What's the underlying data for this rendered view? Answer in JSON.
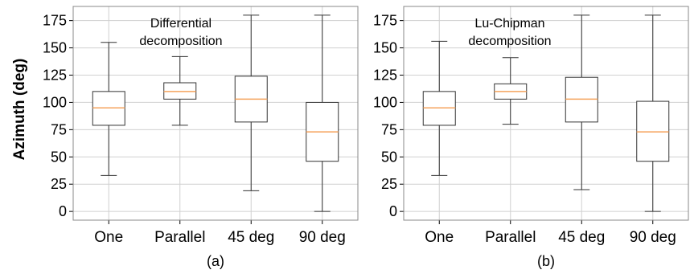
{
  "figure": {
    "ylabel": "Azimuth (deg)",
    "ytick_labels": [
      "0",
      "25",
      "50",
      "75",
      "100",
      "125",
      "150",
      "175"
    ],
    "colors": {
      "box": "#333333",
      "median": "#f5a35c",
      "grid": "#d0d0d0",
      "frame": "#888888"
    }
  },
  "chart_data": [
    {
      "type": "box",
      "caption": "(a)",
      "annotation": [
        "Differential",
        "decomposition"
      ],
      "ylabel": "Azimuth (deg)",
      "ylim": [
        -8,
        188
      ],
      "yticks": [
        0,
        25,
        50,
        75,
        100,
        125,
        150,
        175
      ],
      "grid": true,
      "categories": [
        "One",
        "Parallel",
        "45 deg",
        "90 deg"
      ],
      "boxes": [
        {
          "whislo": 33,
          "q1": 79,
          "med": 95,
          "q3": 110,
          "whishi": 155
        },
        {
          "whislo": 79,
          "q1": 103,
          "med": 110,
          "q3": 118,
          "whishi": 142
        },
        {
          "whislo": 19,
          "q1": 82,
          "med": 103,
          "q3": 124,
          "whishi": 180
        },
        {
          "whislo": 0,
          "q1": 46,
          "med": 73,
          "q3": 100,
          "whishi": 180
        }
      ]
    },
    {
      "type": "box",
      "caption": "(b)",
      "annotation": [
        "Lu-Chipman",
        "decomposition"
      ],
      "ylim": [
        -8,
        188
      ],
      "yticks": [
        0,
        25,
        50,
        75,
        100,
        125,
        150,
        175
      ],
      "grid": true,
      "categories": [
        "One",
        "Parallel",
        "45 deg",
        "90 deg"
      ],
      "boxes": [
        {
          "whislo": 33,
          "q1": 79,
          "med": 95,
          "q3": 110,
          "whishi": 156
        },
        {
          "whislo": 80,
          "q1": 103,
          "med": 110,
          "q3": 117,
          "whishi": 141
        },
        {
          "whislo": 20,
          "q1": 82,
          "med": 103,
          "q3": 123,
          "whishi": 180
        },
        {
          "whislo": 0,
          "q1": 46,
          "med": 73,
          "q3": 101,
          "whishi": 180
        }
      ]
    }
  ]
}
